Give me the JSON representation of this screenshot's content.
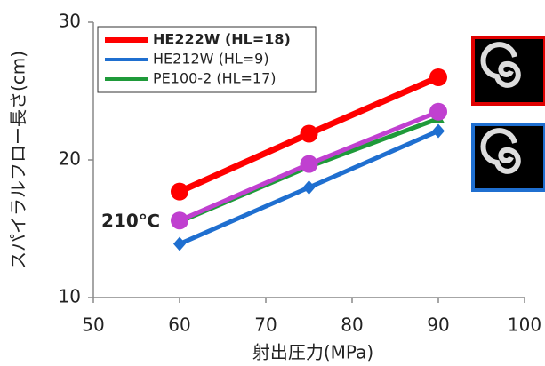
{
  "chart_data": {
    "type": "line",
    "x_label": "射出圧力(MPa)",
    "y_label": "スパイラルフロー長さ(cm)",
    "x": [
      60,
      75,
      90
    ],
    "xlim": [
      50,
      100
    ],
    "xticks": [
      50,
      60,
      70,
      80,
      90,
      100
    ],
    "ylim": [
      10,
      30
    ],
    "yticks": [
      10,
      20,
      30
    ],
    "series": [
      {
        "name": "HE222W (HL=18)",
        "color": "#ff0000",
        "marker": "circle",
        "bold": true,
        "values": [
          17.7,
          21.9,
          26.0
        ]
      },
      {
        "name": "HE212W (HL=9)",
        "color": "#1f6fd0",
        "marker": "diamond",
        "values": [
          13.9,
          18.0,
          22.1
        ]
      },
      {
        "name": "PE100-2 (HL=17)",
        "color": "#1f9a3a",
        "marker": "triangle",
        "values": [
          15.5,
          19.5,
          23.0
        ]
      },
      {
        "name": "210℃",
        "color": "#c040d0",
        "marker": "circle",
        "legend": false,
        "values": [
          15.6,
          19.7,
          23.5
        ]
      }
    ]
  }
}
